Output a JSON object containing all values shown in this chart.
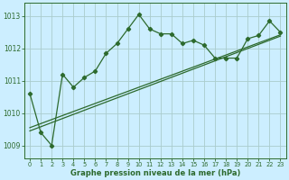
{
  "xlabel": "Graphe pression niveau de la mer (hPa)",
  "bg_color": "#cceeff",
  "grid_color": "#aacccc",
  "line_color": "#2d6a2d",
  "xlim": [
    -0.5,
    23.5
  ],
  "ylim": [
    1008.6,
    1013.4
  ],
  "yticks": [
    1009,
    1010,
    1011,
    1012,
    1013
  ],
  "xticks": [
    0,
    1,
    2,
    3,
    4,
    5,
    6,
    7,
    8,
    9,
    10,
    11,
    12,
    13,
    14,
    15,
    16,
    17,
    18,
    19,
    20,
    21,
    22,
    23
  ],
  "series1_x": [
    0,
    1,
    2,
    3,
    4,
    5,
    6,
    7,
    8,
    9,
    10,
    11,
    12,
    13,
    14,
    15,
    16,
    17,
    18,
    19,
    20,
    21,
    22,
    23
  ],
  "series1_y": [
    1010.6,
    1009.4,
    1009.0,
    1011.2,
    1010.8,
    1011.1,
    1011.3,
    1011.85,
    1012.15,
    1012.6,
    1013.05,
    1012.6,
    1012.45,
    1012.45,
    1012.15,
    1012.25,
    1012.1,
    1011.7,
    1011.7,
    1011.7,
    1012.3,
    1012.4,
    1012.85,
    1012.5
  ],
  "series2_x": [
    0,
    23
  ],
  "series2_y": [
    1009.55,
    1012.42
  ],
  "series3_x": [
    0,
    23
  ],
  "series3_y": [
    1009.45,
    1012.38
  ],
  "figsize": [
    3.2,
    2.0
  ],
  "dpi": 100
}
